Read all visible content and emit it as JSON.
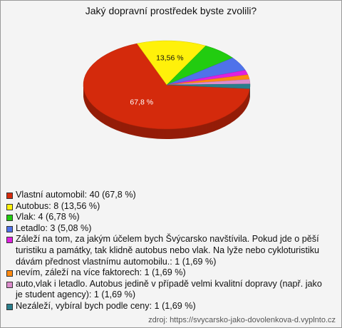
{
  "chart_data": {
    "type": "pie",
    "title": "Jaký dopravní prostředek byste zvolili?",
    "categories": [
      "Vlastní automobil: 40 (67,8 %)",
      "Autobus: 8 (13,56 %)",
      "Vlak: 4 (6,78 %)",
      "Letadlo: 3 (5,08 %)",
      "Záleží na tom, za jakým účelem bych Švýcarsko navštívila. Pokud jde o pěší turistiku a památky, tak klidně autobus nebo vlak. Na lyže nebo cykloturistiku dávám přednost vlastnímu automobilu.: 1 (1,69 %)",
      "nevím, záleží na více faktorech: 1 (1,69 %)",
      "auto,vlak i letadlo. Autobus jedině v případě velmi kvalitní dopravy (např. jako je student agency): 1 (1,69 %)",
      "Nezáleží, vybíral bych podle ceny: 1 (1,69 %)"
    ],
    "values": [
      67.8,
      13.56,
      6.78,
      5.08,
      1.69,
      1.69,
      1.69,
      1.69
    ],
    "value_labels": [
      "67,8 %",
      "13,56 %",
      null,
      null,
      null,
      null,
      null,
      null
    ],
    "colors": [
      "#d42a0c",
      "#fff10a",
      "#22cc10",
      "#4f72ea",
      "#e020e0",
      "#ff8a10",
      "#dc8ccc",
      "#2a7f8c"
    ],
    "source": "zdroj: https://svycarsko-jako-dovolenkova-d.vyplnto.cz"
  }
}
